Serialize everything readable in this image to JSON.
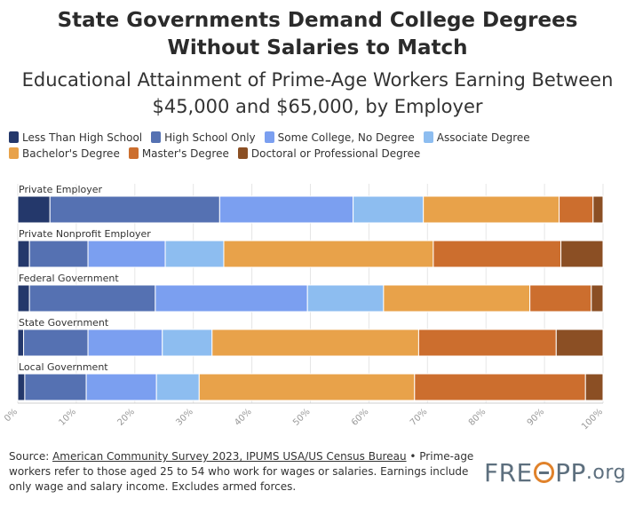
{
  "title": "State Governments Demand College Degrees Without Salaries to Match",
  "subtitle": "Educational Attainment of Prime-Age Workers Earning Between $45,000 and $65,000, by Employer",
  "footer": {
    "source_prefix": "Source: ",
    "source_link": "American Community Survey 2023, IPUMS USA/US Census Bureau",
    "note": " • Prime-age workers refer to those aged 25 to 54 who work for wages or salaries. Earnings include only wage and salary income. Excludes armed forces."
  },
  "logo": {
    "part1": "FRE",
    "part2": "PP",
    "part3": ".org"
  },
  "chart_data": {
    "type": "bar",
    "orientation": "horizontal",
    "stacked": true,
    "categories": [
      "Private Employer",
      "Private Nonprofit Employer",
      "Federal Government",
      "State Government",
      "Local Government"
    ],
    "series": [
      {
        "name": "Less Than High School",
        "color": "#24386b",
        "values": [
          5.5,
          2.0,
          2.0,
          1.0,
          1.2
        ]
      },
      {
        "name": "High School Only",
        "color": "#5571b2",
        "values": [
          29.0,
          10.0,
          21.5,
          11.0,
          10.5
        ]
      },
      {
        "name": "Some College, No Degree",
        "color": "#7b9ff0",
        "values": [
          22.8,
          13.2,
          26.0,
          12.7,
          12.0
        ]
      },
      {
        "name": "Associate Degree",
        "color": "#8dbdf0",
        "values": [
          12.0,
          10.0,
          13.0,
          8.5,
          7.3
        ]
      },
      {
        "name": "Bachelor's Degree",
        "color": "#e8a24a",
        "values": [
          23.2,
          35.8,
          25.0,
          35.3,
          36.8
        ]
      },
      {
        "name": "Master's Degree",
        "color": "#cc6e2e",
        "values": [
          5.8,
          21.8,
          10.5,
          23.5,
          29.2
        ]
      },
      {
        "name": "Doctoral or Professional Degree",
        "color": "#8b4f24",
        "values": [
          1.7,
          7.2,
          2.0,
          8.0,
          3.0
        ]
      }
    ],
    "xlim": [
      0,
      100
    ],
    "x_ticks": [
      "0%",
      "10%",
      "20%",
      "30%",
      "40%",
      "50%",
      "60%",
      "70%",
      "80%",
      "90%",
      "100%"
    ],
    "legend_position": "top-left",
    "grid": true
  }
}
